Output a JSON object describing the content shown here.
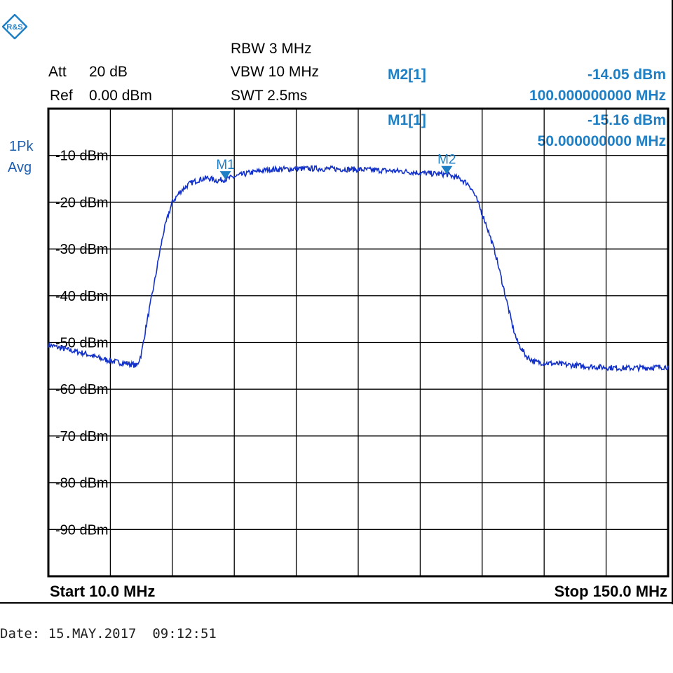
{
  "instrument": {
    "att_label": "Att",
    "att_value": "20 dB",
    "ref_label": "Ref",
    "ref_value": "0.00 dBm",
    "rbw": "RBW 3 MHz",
    "vbw": "VBW 10 MHz",
    "swt": "SWT 2.5ms",
    "trace_mode_1": "1Pk",
    "trace_mode_2": "Avg",
    "logo_icon": "rohde-schwarz-diamond-icon",
    "accent_color": "#1f7fc4",
    "trace_color": "#1432c8"
  },
  "markers": {
    "m2_label": "M2[1]",
    "m2_level": "-14.05 dBm",
    "m2_freq": "100.000000000 MHz",
    "m1_label": "M1[1]",
    "m1_level": "-15.16 dBm",
    "m1_freq": "50.000000000 MHz"
  },
  "footer": {
    "start": "Start 10.0 MHz",
    "stop": "Stop 150.0 MHz",
    "date": "Date: 15.MAY.2017  09:12:51"
  },
  "chart_data": {
    "type": "line",
    "xlim": [
      10,
      150
    ],
    "ylim": [
      -100,
      0
    ],
    "x_unit": "MHz",
    "y_unit": "dBm",
    "grid": true,
    "y_tick_values": [
      -10,
      -20,
      -30,
      -40,
      -50,
      -60,
      -70,
      -80,
      -90
    ],
    "y_tick_labels": [
      "-10 dBm",
      "-20 dBm",
      "-30 dBm",
      "-40 dBm",
      "-50 dBm",
      "-60 dBm",
      "-70 dBm",
      "-80 dBm",
      "-90 dBm"
    ],
    "series": [
      {
        "x": [
          10,
          14,
          18,
          22,
          26,
          28,
          30,
          31,
          32,
          33,
          34,
          35,
          36,
          37,
          38,
          40,
          42,
          44,
          46,
          48,
          50,
          55,
          60,
          70,
          80,
          90,
          95,
          100,
          103,
          105,
          106,
          107,
          108,
          109,
          110,
          111,
          112,
          113,
          114,
          115,
          116,
          118,
          120,
          125,
          130,
          135,
          140,
          145,
          150
        ],
        "y": [
          -50.5,
          -51.5,
          -52.3,
          -53.5,
          -54.3,
          -54.5,
          -55.0,
          -52.5,
          -47.0,
          -42.0,
          -37.0,
          -31.5,
          -26.5,
          -23.0,
          -20.0,
          -17.5,
          -16.0,
          -15.2,
          -14.8,
          -15.4,
          -15.1,
          -13.8,
          -13.0,
          -12.8,
          -13.0,
          -13.4,
          -13.8,
          -14.05,
          -15.0,
          -16.2,
          -17.8,
          -20.0,
          -22.5,
          -25.0,
          -28.0,
          -31.0,
          -35.0,
          -39.0,
          -43.0,
          -47.0,
          -50.0,
          -53.0,
          -54.2,
          -54.6,
          -55.0,
          -55.3,
          -55.5,
          -55.4,
          -55.2
        ]
      }
    ],
    "markers": [
      {
        "name": "M1",
        "x": 50,
        "y": -15.16
      },
      {
        "name": "M2",
        "x": 100,
        "y": -14.05
      }
    ]
  }
}
